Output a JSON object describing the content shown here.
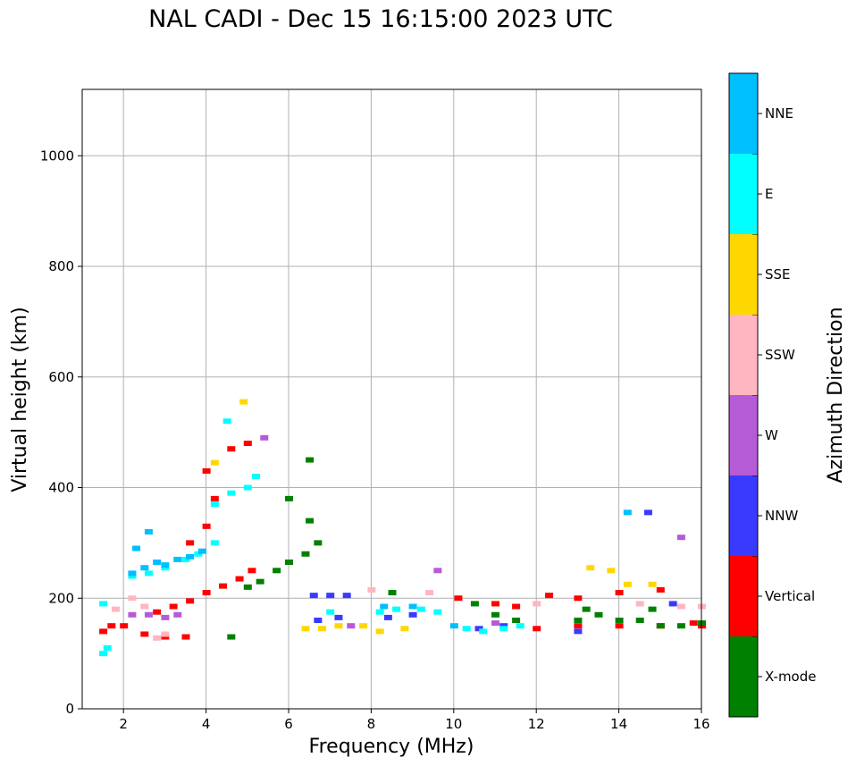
{
  "chart_data": {
    "type": "scatter",
    "title": "NAL CADI - Dec 15 16:15:00 2023 UTC",
    "xlabel": "Frequency (MHz)",
    "ylabel": "Virtual height (km)",
    "xlim": [
      1,
      16
    ],
    "ylim": [
      0,
      1120
    ],
    "xticks": [
      "2",
      "4",
      "6",
      "8",
      "10",
      "12",
      "14",
      "16"
    ],
    "yticks": [
      "0",
      "200",
      "400",
      "600",
      "800",
      "1000"
    ],
    "grid": true,
    "colorbar": {
      "label": "Azimuth Direction",
      "categories": [
        {
          "name": "X-mode",
          "color": "#008000"
        },
        {
          "name": "Vertical",
          "color": "#ff0000"
        },
        {
          "name": "NNW",
          "color": "#3a3aff"
        },
        {
          "name": "W",
          "color": "#b65bd6"
        },
        {
          "name": "SSW",
          "color": "#ffb6c1"
        },
        {
          "name": "SSE",
          "color": "#ffd700"
        },
        {
          "name": "E",
          "color": "#00ffff"
        },
        {
          "name": "NNE",
          "color": "#00bfff"
        }
      ]
    },
    "series": [
      {
        "name": "Vertical",
        "color": "#ff0000",
        "points": [
          [
            1.5,
            140
          ],
          [
            1.7,
            150
          ],
          [
            2.0,
            150
          ],
          [
            2.5,
            135
          ],
          [
            3.0,
            130
          ],
          [
            3.5,
            130
          ],
          [
            2.8,
            175
          ],
          [
            3.2,
            185
          ],
          [
            3.6,
            195
          ],
          [
            4.0,
            210
          ],
          [
            4.4,
            222
          ],
          [
            4.8,
            235
          ],
          [
            5.1,
            250
          ],
          [
            3.6,
            300
          ],
          [
            4.0,
            330
          ],
          [
            4.2,
            380
          ],
          [
            4.0,
            430
          ],
          [
            4.6,
            470
          ],
          [
            5.0,
            480
          ],
          [
            12.3,
            205
          ],
          [
            13.0,
            200
          ],
          [
            14.0,
            210
          ],
          [
            15.0,
            215
          ],
          [
            12.0,
            145
          ],
          [
            13.0,
            150
          ],
          [
            14.0,
            150
          ],
          [
            15.0,
            150
          ],
          [
            16.0,
            150
          ],
          [
            10.1,
            200
          ],
          [
            11.0,
            190
          ],
          [
            11.5,
            185
          ],
          [
            15.8,
            155
          ]
        ]
      },
      {
        "name": "X-mode",
        "color": "#008000",
        "points": [
          [
            4.6,
            130
          ],
          [
            5.0,
            220
          ],
          [
            5.3,
            230
          ],
          [
            5.7,
            250
          ],
          [
            6.0,
            265
          ],
          [
            6.4,
            280
          ],
          [
            6.7,
            300
          ],
          [
            6.5,
            340
          ],
          [
            6.5,
            450
          ],
          [
            6.0,
            380
          ],
          [
            8.5,
            210
          ],
          [
            10.5,
            190
          ],
          [
            11.0,
            170
          ],
          [
            11.5,
            160
          ],
          [
            13.0,
            160
          ],
          [
            13.5,
            170
          ],
          [
            14.0,
            160
          ],
          [
            14.5,
            160
          ],
          [
            15.0,
            150
          ],
          [
            15.5,
            150
          ],
          [
            16.0,
            155
          ],
          [
            13.2,
            180
          ],
          [
            14.8,
            180
          ]
        ]
      },
      {
        "name": "NNW",
        "color": "#3a3aff",
        "points": [
          [
            6.6,
            205
          ],
          [
            7.0,
            205
          ],
          [
            7.4,
            205
          ],
          [
            6.7,
            160
          ],
          [
            7.2,
            165
          ],
          [
            8.4,
            165
          ],
          [
            9.0,
            170
          ],
          [
            10.6,
            145
          ],
          [
            11.2,
            150
          ],
          [
            13.0,
            140
          ],
          [
            14.7,
            355
          ],
          [
            15.3,
            190
          ]
        ]
      },
      {
        "name": "W",
        "color": "#b65bd6",
        "points": [
          [
            2.2,
            170
          ],
          [
            2.6,
            170
          ],
          [
            3.0,
            165
          ],
          [
            3.3,
            170
          ],
          [
            9.6,
            250
          ],
          [
            5.4,
            490
          ],
          [
            7.5,
            150
          ],
          [
            11.0,
            155
          ],
          [
            15.5,
            310
          ]
        ]
      },
      {
        "name": "SSW",
        "color": "#ffb6c1",
        "points": [
          [
            1.8,
            180
          ],
          [
            2.2,
            200
          ],
          [
            2.5,
            185
          ],
          [
            2.8,
            128
          ],
          [
            3.0,
            135
          ],
          [
            8.0,
            215
          ],
          [
            9.4,
            210
          ],
          [
            12.0,
            190
          ],
          [
            14.5,
            190
          ],
          [
            15.5,
            185
          ],
          [
            16.0,
            185
          ]
        ]
      },
      {
        "name": "SSE",
        "color": "#ffd700",
        "points": [
          [
            6.4,
            145
          ],
          [
            6.8,
            145
          ],
          [
            7.2,
            150
          ],
          [
            7.8,
            150
          ],
          [
            8.2,
            140
          ],
          [
            8.8,
            145
          ],
          [
            13.3,
            255
          ],
          [
            13.8,
            250
          ],
          [
            14.2,
            225
          ],
          [
            14.8,
            225
          ],
          [
            4.2,
            445
          ],
          [
            4.9,
            555
          ]
        ]
      },
      {
        "name": "E",
        "color": "#00ffff",
        "points": [
          [
            1.5,
            100
          ],
          [
            1.6,
            110
          ],
          [
            1.5,
            190
          ],
          [
            2.2,
            240
          ],
          [
            2.6,
            245
          ],
          [
            3.0,
            255
          ],
          [
            3.5,
            270
          ],
          [
            3.8,
            280
          ],
          [
            4.2,
            300
          ],
          [
            4.2,
            370
          ],
          [
            4.6,
            390
          ],
          [
            5.0,
            400
          ],
          [
            5.2,
            420
          ],
          [
            8.2,
            175
          ],
          [
            8.6,
            180
          ],
          [
            9.2,
            180
          ],
          [
            9.6,
            175
          ],
          [
            10.3,
            145
          ],
          [
            10.7,
            140
          ],
          [
            11.2,
            145
          ],
          [
            11.6,
            150
          ],
          [
            7.0,
            175
          ],
          [
            4.5,
            520
          ]
        ]
      },
      {
        "name": "NNE",
        "color": "#00bfff",
        "points": [
          [
            2.2,
            245
          ],
          [
            2.5,
            255
          ],
          [
            2.8,
            265
          ],
          [
            3.0,
            260
          ],
          [
            3.3,
            270
          ],
          [
            3.6,
            275
          ],
          [
            3.9,
            285
          ],
          [
            2.3,
            290
          ],
          [
            2.6,
            320
          ],
          [
            8.3,
            185
          ],
          [
            9.0,
            185
          ],
          [
            10.0,
            150
          ],
          [
            14.2,
            355
          ]
        ]
      }
    ]
  }
}
